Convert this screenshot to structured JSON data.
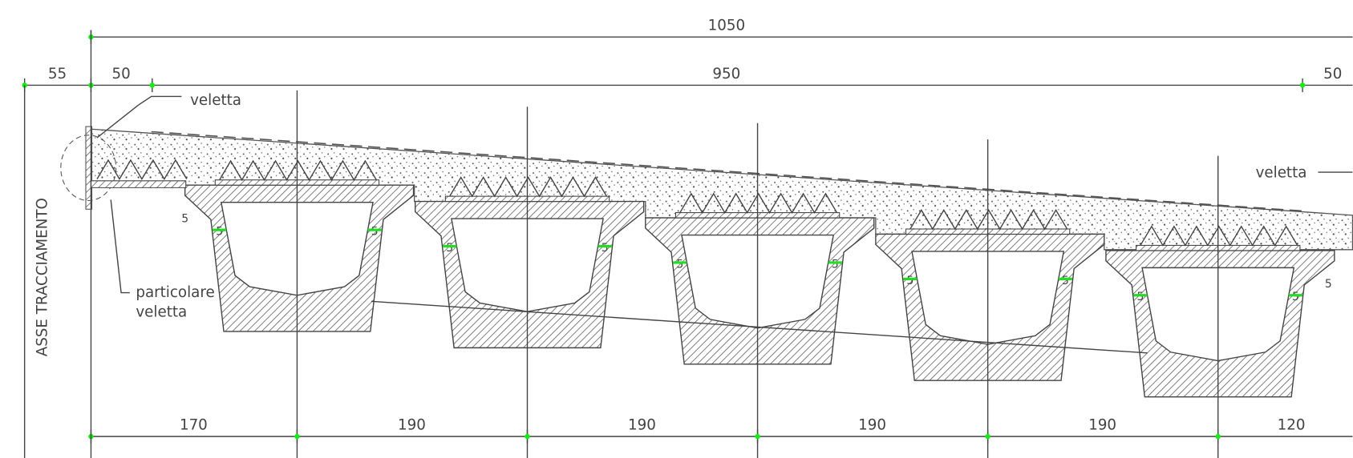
{
  "dimensions": {
    "top": [
      1050
    ],
    "middle": [
      55,
      50,
      950,
      50
    ],
    "bottom": [
      170,
      190,
      190,
      190,
      190,
      120
    ]
  },
  "labels": {
    "veletta_left": "veletta",
    "veletta_right": "veletta",
    "detail": [
      "particolare",
      "veletta"
    ],
    "axis": "ASSE TRACCIAMENTO",
    "marker": "5"
  }
}
